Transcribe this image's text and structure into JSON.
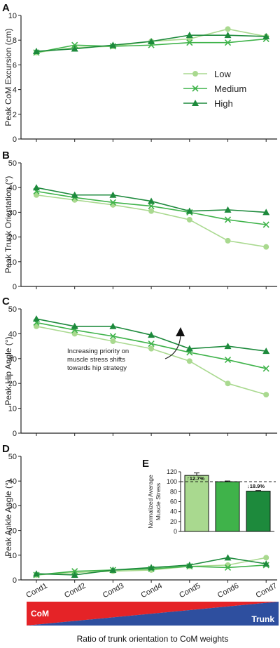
{
  "colors": {
    "low": "#a9d98f",
    "medium": "#3fb34a",
    "high": "#1d8a3c",
    "com_red": "#e52327",
    "trunk_blue": "#2e4f9f",
    "axis": "#222222"
  },
  "legend": {
    "entries": [
      {
        "label": "Low",
        "marker": "circle",
        "series": "low"
      },
      {
        "label": "Medium",
        "marker": "cross",
        "series": "medium"
      },
      {
        "label": "High",
        "marker": "triangle",
        "series": "high"
      }
    ]
  },
  "chart_data": [
    {
      "panel": "A",
      "type": "line",
      "ylabel": "Peak CoM Excursion (cm)",
      "ylim": [
        0,
        10
      ],
      "yticks": [
        "0",
        "2",
        "4",
        "6",
        "8",
        "10"
      ],
      "categories": [
        "Cond1",
        "Cond2",
        "Cond3",
        "Cond4",
        "Cond5",
        "Cond6",
        "Cond7"
      ],
      "series": [
        {
          "name": "Low",
          "key": "low",
          "values": [
            7.0,
            7.4,
            7.5,
            7.9,
            8.1,
            8.9,
            8.3
          ]
        },
        {
          "name": "Medium",
          "key": "medium",
          "values": [
            7.0,
            7.6,
            7.5,
            7.6,
            7.8,
            7.8,
            8.1
          ]
        },
        {
          "name": "High",
          "key": "high",
          "values": [
            7.1,
            7.3,
            7.6,
            7.9,
            8.4,
            8.4,
            8.3
          ]
        }
      ]
    },
    {
      "panel": "B",
      "type": "line",
      "ylabel": "Peak Trunk Orientation (°)",
      "ylim": [
        0,
        50
      ],
      "yticks": [
        "0",
        "10",
        "20",
        "30",
        "40",
        "50"
      ],
      "categories": [
        "Cond1",
        "Cond2",
        "Cond3",
        "Cond4",
        "Cond5",
        "Cond6",
        "Cond7"
      ],
      "series": [
        {
          "name": "Low",
          "key": "low",
          "values": [
            37,
            35,
            33,
            30.5,
            27,
            18.5,
            16
          ]
        },
        {
          "name": "Medium",
          "key": "medium",
          "values": [
            38.5,
            36,
            34,
            32.5,
            30,
            27,
            25
          ]
        },
        {
          "name": "High",
          "key": "high",
          "values": [
            40,
            37,
            37,
            34.5,
            30.5,
            31,
            30
          ]
        }
      ]
    },
    {
      "panel": "C",
      "type": "line",
      "ylabel": "Peak Hip Angle (°)",
      "ylim": [
        0,
        50
      ],
      "yticks": [
        "0",
        "10",
        "20",
        "30",
        "40",
        "50"
      ],
      "categories": [
        "Cond1",
        "Cond2",
        "Cond3",
        "Cond4",
        "Cond5",
        "Cond6",
        "Cond7"
      ],
      "annotation": [
        "Increasing priority on",
        "muscle stress shifts",
        "towards hip strategy"
      ],
      "series": [
        {
          "name": "Low",
          "key": "low",
          "values": [
            43,
            40,
            37,
            34,
            29,
            20,
            15.5
          ]
        },
        {
          "name": "Medium",
          "key": "medium",
          "values": [
            44.5,
            41.5,
            39,
            36,
            32.5,
            29.5,
            26
          ]
        },
        {
          "name": "High",
          "key": "high",
          "values": [
            46,
            43,
            43,
            39.5,
            34,
            35,
            33
          ]
        }
      ]
    },
    {
      "panel": "D",
      "type": "line",
      "ylabel": "Peak Ankle Angle (°)",
      "ylim": [
        0,
        50
      ],
      "yticks": [
        "0",
        "10",
        "20",
        "30",
        "40",
        "50"
      ],
      "categories": [
        "Cond1",
        "Cond2",
        "Cond3",
        "Cond4",
        "Cond5",
        "Cond6",
        "Cond7"
      ],
      "series": [
        {
          "name": "Low",
          "key": "low",
          "values": [
            2,
            3,
            3.5,
            4,
            5.5,
            6,
            9
          ]
        },
        {
          "name": "Medium",
          "key": "medium",
          "values": [
            2,
            3.5,
            4,
            4.5,
            5.5,
            5,
            6
          ]
        },
        {
          "name": "High",
          "key": "high",
          "values": [
            2.5,
            2,
            4,
            5,
            6,
            9,
            6.5
          ]
        }
      ]
    },
    {
      "panel": "E",
      "type": "bar",
      "ylabel": "Normalized Average Muscle Stress",
      "ylim": [
        0,
        120
      ],
      "yticks": [
        "0",
        "20",
        "40",
        "60",
        "80",
        "100",
        "120"
      ],
      "categories": [
        "Low",
        "Medium",
        "High"
      ],
      "values": [
        112.7,
        100,
        81.1
      ],
      "errors": [
        5,
        1.5,
        1.2
      ],
      "reference": 100,
      "labels": [
        "12.7%",
        "18.9%"
      ]
    }
  ],
  "xaxis": {
    "labels": [
      "Cond1",
      "Cond2",
      "Cond3",
      "Cond4",
      "Cond5",
      "Cond6",
      "Cond7"
    ]
  },
  "ratio_bar": {
    "left_label": "CoM",
    "right_label": "Trunk",
    "caption": "Ratio of trunk orientation to CoM weights"
  }
}
